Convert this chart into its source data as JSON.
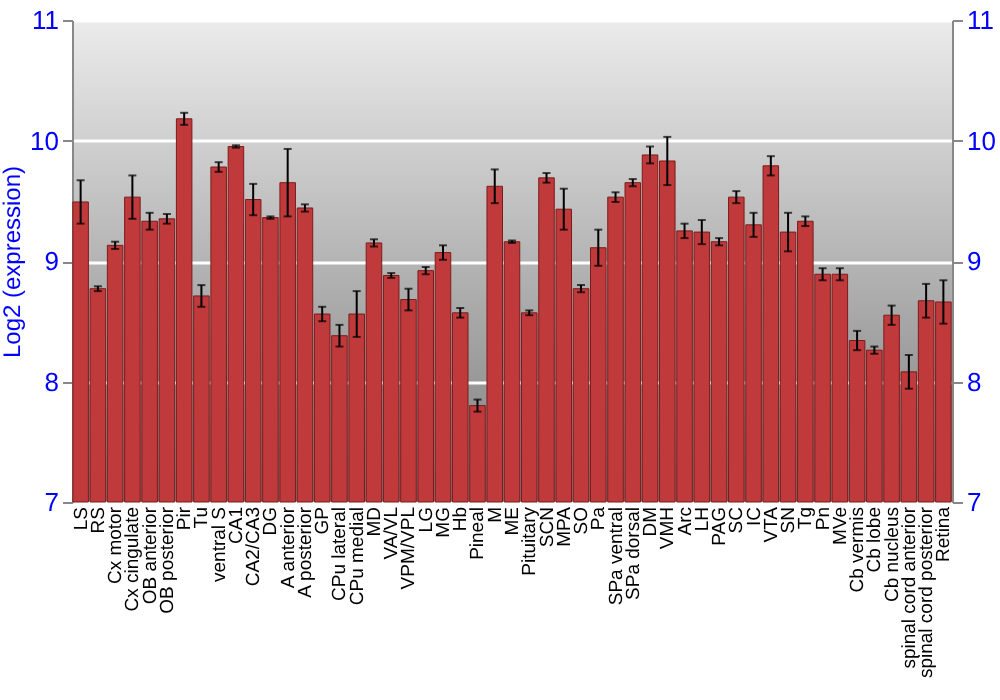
{
  "chart_data": {
    "type": "bar",
    "ylabel": "Log2 (expression)",
    "categories": [
      "LS",
      "RS",
      "Cx motor",
      "Cx cingulate",
      "OB anterior",
      "OB posterior",
      "Pir",
      "Tu",
      "ventral S",
      "CA1",
      "CA2/CA3",
      "DG",
      "A anterior",
      "A posterior",
      "GP",
      "CPu lateral",
      "CPu medial",
      "MD",
      "VA/VL",
      "VPM/VPL",
      "LG",
      "MG",
      "Hb",
      "Pineal",
      "M",
      "ME",
      "Pituitary",
      "SCN",
      "MPA",
      "SO",
      "Pa",
      "SPa ventral",
      "SPa dorsal",
      "DM",
      "VMH",
      "Arc",
      "LH",
      "PAG",
      "SC",
      "IC",
      "VTA",
      "SN",
      "Tg",
      "Pn",
      "MVe",
      "Cb vermis",
      "Cb lobe",
      "Cb nucleus",
      "spinal cord anterior",
      "spinal cord posterior",
      "Retina"
    ],
    "series": [
      {
        "color": "#c0393b",
        "values": [
          9.49,
          8.77,
          9.13,
          9.53,
          9.33,
          9.35,
          10.18,
          8.71,
          9.78,
          9.95,
          9.51,
          9.36,
          9.65,
          9.44,
          8.56,
          8.38,
          8.56,
          9.15,
          8.88,
          8.68,
          8.92,
          9.07,
          8.57,
          7.8,
          9.62,
          9.16,
          8.57,
          9.69,
          9.43,
          8.77,
          9.11,
          9.53,
          9.65,
          9.88,
          9.83,
          9.25,
          9.24,
          9.16,
          9.53,
          9.3,
          9.79,
          9.24,
          9.33,
          8.89,
          8.89,
          8.34,
          8.26,
          8.55,
          8.08,
          8.67,
          8.66
        ],
        "errors": [
          0.18,
          0.02,
          0.03,
          0.18,
          0.07,
          0.04,
          0.05,
          0.09,
          0.04,
          0.01,
          0.13,
          0.01,
          0.28,
          0.03,
          0.06,
          0.09,
          0.19,
          0.03,
          0.02,
          0.09,
          0.03,
          0.06,
          0.04,
          0.05,
          0.14,
          0.01,
          0.02,
          0.04,
          0.17,
          0.03,
          0.15,
          0.04,
          0.03,
          0.07,
          0.2,
          0.06,
          0.1,
          0.03,
          0.05,
          0.1,
          0.08,
          0.16,
          0.04,
          0.05,
          0.05,
          0.08,
          0.03,
          0.08,
          0.14,
          0.14,
          0.18
        ]
      }
    ],
    "ylim": [
      7,
      11
    ],
    "yticks": [
      7,
      8,
      9,
      10,
      11
    ],
    "y2lim": [
      7,
      11
    ],
    "y2ticks": [
      7,
      8,
      9,
      10,
      11
    ],
    "grid": "y"
  }
}
